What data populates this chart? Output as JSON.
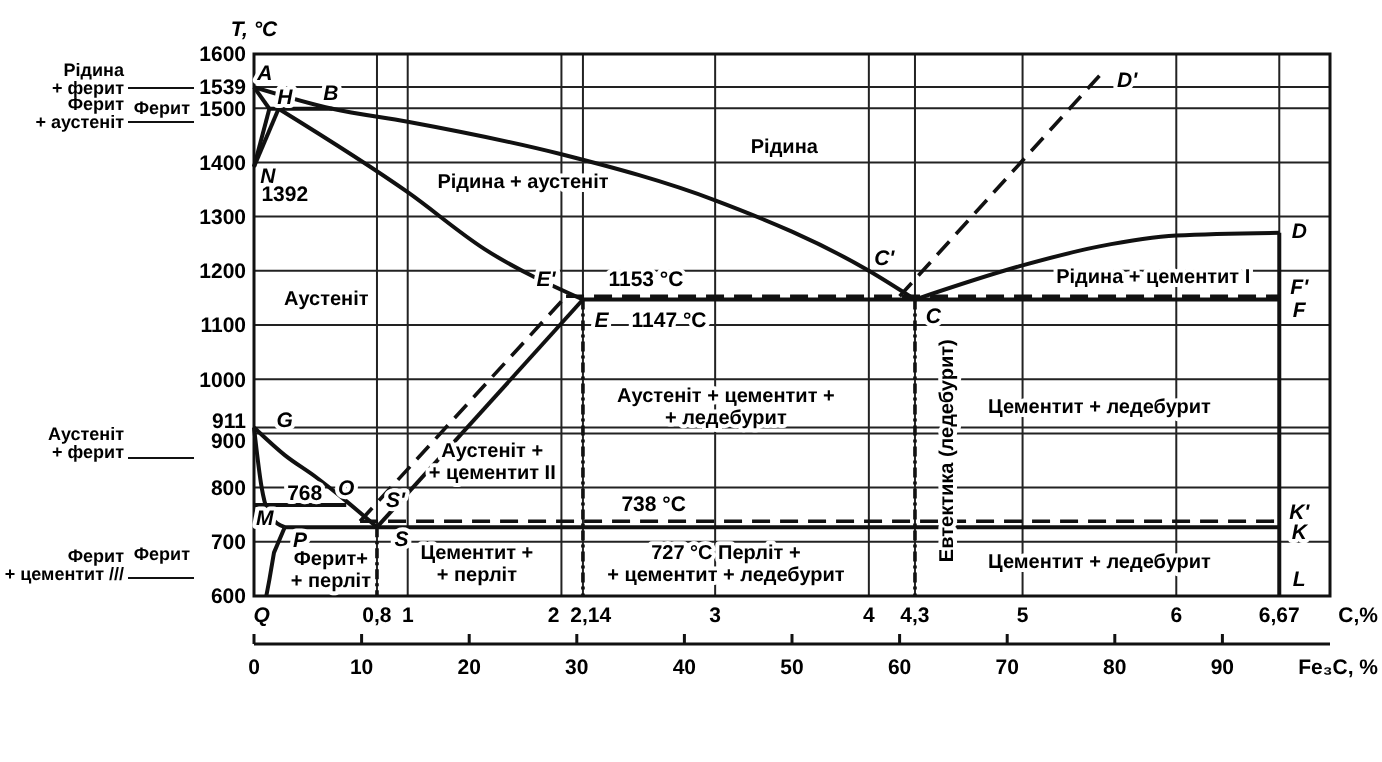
{
  "chart_data": {
    "type": "line",
    "ylabel": "T, °C",
    "xlabel": "C,%",
    "x2label": "Fe₃C, %",
    "xlim": [
      0,
      7
    ],
    "ylim": [
      600,
      1600
    ],
    "xticks": [
      {
        "value": 0.8,
        "label": "0,8"
      },
      1,
      2,
      {
        "value": 2.14,
        "label": "2,14"
      },
      3,
      4,
      {
        "value": 4.3,
        "label": "4,3"
      },
      5,
      6,
      {
        "value": 6.67,
        "label": "6,67"
      }
    ],
    "yticks": [
      600,
      700,
      800,
      900,
      911,
      1000,
      1100,
      1200,
      1300,
      1400,
      1500,
      1539,
      1600
    ],
    "x2lim": [
      0,
      100
    ],
    "x2ticks": [
      0,
      10,
      20,
      30,
      40,
      50,
      60,
      70,
      80,
      90
    ],
    "grid": true,
    "series": [
      {
        "color": "#111111",
        "line_style": "solid",
        "x": [
          0,
          0.51,
          1,
          2,
          3,
          4,
          4.3
        ],
        "values": [
          1539,
          1499,
          1475,
          1415,
          1330,
          1200,
          1147
        ]
      },
      {
        "color": "#111111",
        "line_style": "solid",
        "x": [
          4.3,
          5,
          5.5,
          6,
          6.67
        ],
        "values": [
          1147,
          1210,
          1245,
          1265,
          1270
        ]
      },
      {
        "color": "#111111",
        "line_style": "solid",
        "x": [
          0,
          0.1
        ],
        "values": [
          1539,
          1499
        ]
      },
      {
        "color": "#111111",
        "line_style": "solid",
        "x": [
          0.1,
          0.51
        ],
        "values": [
          1499,
          1499
        ]
      },
      {
        "color": "#111111",
        "line_style": "solid",
        "x": [
          0.1,
          0
        ],
        "values": [
          1499,
          1392
        ]
      },
      {
        "color": "#111111",
        "line_style": "solid",
        "x": [
          0.16,
          0
        ],
        "values": [
          1499,
          1392
        ]
      },
      {
        "color": "#111111",
        "line_style": "solid",
        "x": [
          0.16,
          1,
          1.5,
          2.14
        ],
        "values": [
          1499,
          1345,
          1240,
          1147
        ]
      },
      {
        "color": "#111111",
        "line_style": "solid",
        "x": [
          2.14,
          6.67
        ],
        "values": [
          1147,
          1147
        ]
      },
      {
        "color": "#111111",
        "line_style": "solid",
        "x": [
          6.67,
          6.67
        ],
        "values": [
          1270,
          600
        ]
      },
      {
        "color": "#111111",
        "line_style": "solid",
        "x": [
          0,
          0.2,
          0.4,
          0.6,
          0.8
        ],
        "values": [
          911,
          860,
          820,
          775,
          727
        ]
      },
      {
        "color": "#111111",
        "line_style": "solid",
        "x": [
          0,
          0.05,
          0.1,
          0.2
        ],
        "values": [
          911,
          800,
          750,
          727
        ]
      },
      {
        "color": "#111111",
        "line_style": "solid",
        "x": [
          0.2,
          0.13,
          0.1,
          0.08
        ],
        "values": [
          727,
          680,
          630,
          600
        ]
      },
      {
        "color": "#111111",
        "line_style": "solid",
        "x": [
          0.2,
          6.67
        ],
        "values": [
          727,
          727
        ]
      },
      {
        "color": "#111111",
        "line_style": "solid",
        "x": [
          0.8,
          2.14
        ],
        "values": [
          727,
          1147
        ]
      },
      {
        "color": "#111111",
        "line_style": "solid",
        "x": [
          0,
          0.6
        ],
        "values": [
          768,
          768
        ]
      },
      {
        "color": "#111111",
        "line_style": "dashed",
        "x": [
          0.69,
          2.03
        ],
        "values": [
          738,
          1153
        ]
      },
      {
        "color": "#111111",
        "line_style": "dashed",
        "x": [
          2.03,
          6.67
        ],
        "values": [
          1153,
          1153
        ]
      },
      {
        "color": "#111111",
        "line_style": "dashed",
        "x": [
          4.2,
          5.5
        ],
        "values": [
          1153,
          1560
        ]
      },
      {
        "color": "#111111",
        "line_style": "dashed",
        "x": [
          0.69,
          6.67
        ],
        "values": [
          738,
          738
        ]
      },
      {
        "color": "#111111",
        "line_style": "dotted",
        "x": [
          0.8,
          0.8
        ],
        "values": [
          727,
          600
        ]
      },
      {
        "color": "#111111",
        "line_style": "dotted",
        "x": [
          2.14,
          2.14
        ],
        "values": [
          1147,
          600
        ]
      },
      {
        "color": "#111111",
        "line_style": "dotted",
        "x": [
          4.3,
          4.3
        ],
        "values": [
          1147,
          600
        ]
      }
    ],
    "annotations": [
      "Рідина\n+ ферит",
      "Ферит",
      "Ферит\n+ аустеніт",
      "Аустеніт\n+ ферит",
      "Ферит",
      "Ферит\n+ цементит ///",
      "Q",
      "A",
      "H",
      "B",
      "N",
      "1392",
      "G",
      "M",
      "768",
      "O",
      "S'",
      "S",
      "P",
      "E'",
      "1153 °C",
      "E",
      "1147 °C",
      "C'",
      "C",
      "D",
      "D'",
      "F'",
      "F",
      "K'",
      "K",
      "L",
      "738 °C",
      "Рідина",
      "Рідина + аустеніт",
      "Аустеніт",
      "Рідина + цементит I",
      "Аустеніт + цементит +\n+ ледебурит",
      "Цементит + ледебурит",
      "Аустеніт +\n+ цементит II",
      "Ферит+\n+ перліт",
      "Цементит +\n+ перліт",
      "727 °C Перліт +\n+ цементит + ледебурит",
      "Цементит + ледебурит",
      "Евтектика (ледебурит)"
    ]
  }
}
